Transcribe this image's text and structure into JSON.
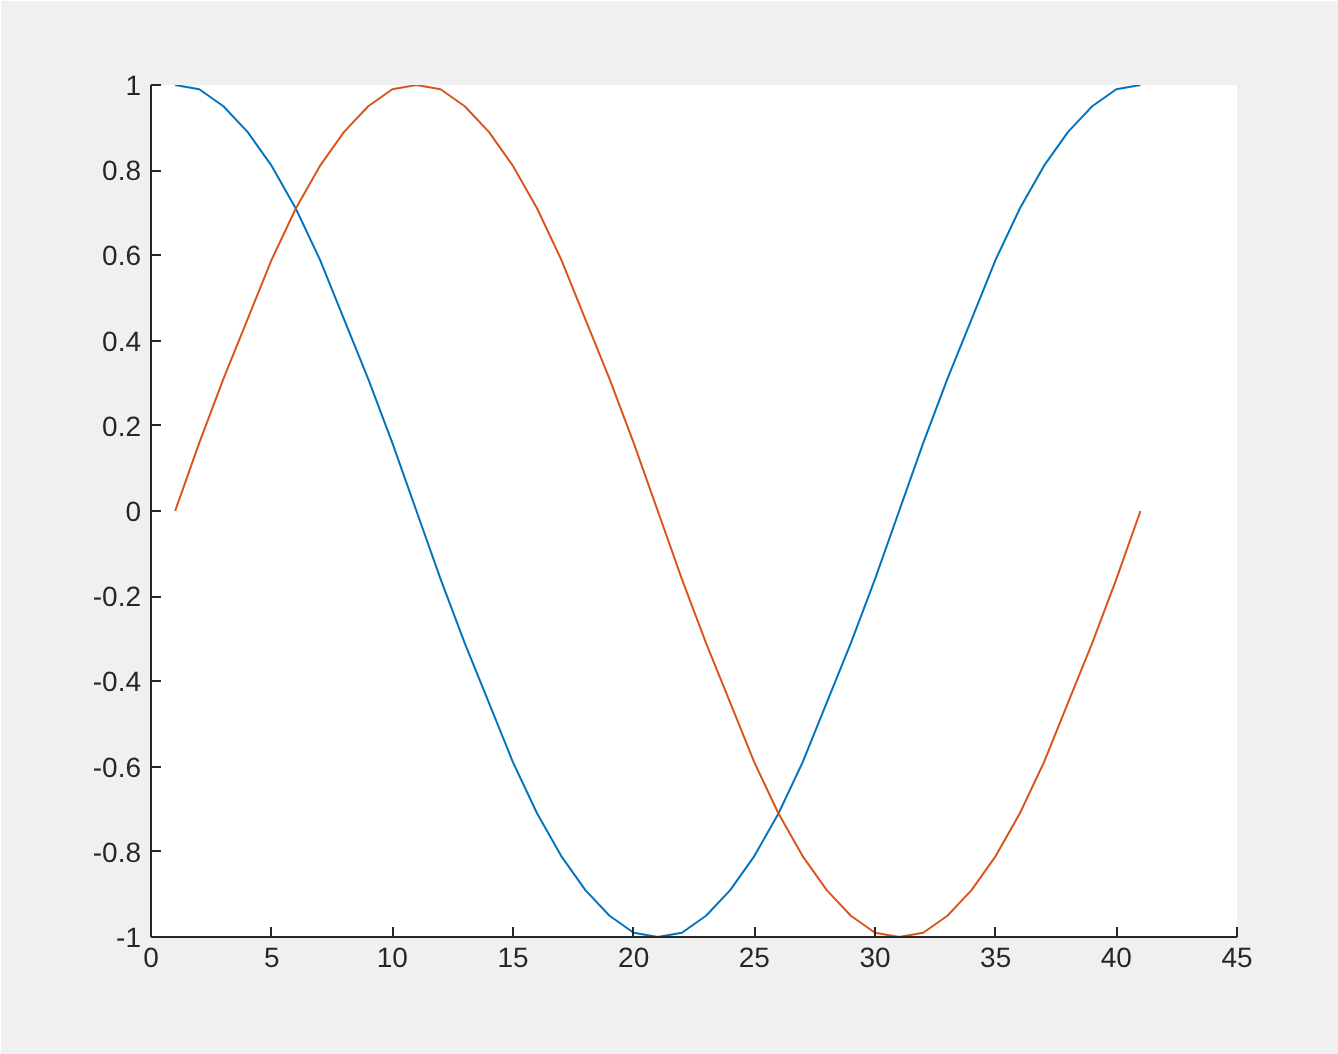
{
  "chart_data": {
    "type": "line",
    "x": [
      1,
      2,
      3,
      4,
      5,
      6,
      7,
      8,
      9,
      10,
      11,
      12,
      13,
      14,
      15,
      16,
      17,
      18,
      19,
      20,
      21,
      22,
      23,
      24,
      25,
      26,
      27,
      28,
      29,
      30,
      31,
      32,
      33,
      34,
      35,
      36,
      37,
      38,
      39,
      40,
      41
    ],
    "series": [
      {
        "color": "#0072bd",
        "values": [
          1.0,
          0.99,
          0.95,
          0.89,
          0.81,
          0.71,
          0.59,
          0.45,
          0.31,
          0.16,
          0.0,
          -0.16,
          -0.31,
          -0.45,
          -0.59,
          -0.71,
          -0.81,
          -0.89,
          -0.95,
          -0.99,
          -1.0,
          -0.99,
          -0.95,
          -0.89,
          -0.81,
          -0.71,
          -0.59,
          -0.45,
          -0.31,
          -0.16,
          0.0,
          0.16,
          0.31,
          0.45,
          0.59,
          0.71,
          0.81,
          0.89,
          0.95,
          0.99,
          1.0
        ]
      },
      {
        "color": "#d95319",
        "values": [
          0.0,
          0.16,
          0.31,
          0.45,
          0.59,
          0.71,
          0.81,
          0.89,
          0.95,
          0.99,
          1.0,
          0.99,
          0.95,
          0.89,
          0.81,
          0.71,
          0.59,
          0.45,
          0.31,
          0.16,
          0.0,
          -0.16,
          -0.31,
          -0.45,
          -0.59,
          -0.71,
          -0.81,
          -0.89,
          -0.95,
          -0.99,
          -1.0,
          -0.99,
          -0.95,
          -0.89,
          -0.81,
          -0.71,
          -0.59,
          -0.45,
          -0.31,
          -0.16,
          0.0
        ]
      }
    ],
    "xlim": [
      0,
      45
    ],
    "xticks": [
      0,
      5,
      10,
      15,
      20,
      25,
      30,
      35,
      40,
      45
    ],
    "ylim": [
      -1,
      1
    ],
    "yticks": [
      -1,
      -0.8,
      -0.6,
      -0.4,
      -0.2,
      0,
      0.2,
      0.4,
      0.6,
      0.8,
      1
    ],
    "grid": false,
    "marker": "none",
    "line_style": "solid"
  }
}
